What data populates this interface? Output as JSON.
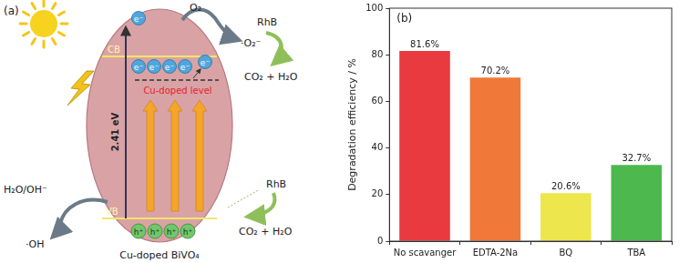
{
  "chart_data": {
    "type": "bar",
    "title": "(b)",
    "y_label": "Degradation efficiency / %",
    "categories": [
      "No scavanger",
      "EDTA-2Na",
      "BQ",
      "TBA"
    ],
    "values": [
      81.6,
      70.2,
      20.6,
      32.7
    ],
    "value_labels": [
      "81.6%",
      "70.2%",
      "20.6%",
      "32.7%"
    ],
    "colors": [
      "#e83a3f",
      "#f07838",
      "#ede64c",
      "#4db84e"
    ],
    "ylim": [
      0,
      100
    ],
    "yticks": [
      0,
      20,
      40,
      60,
      80,
      100
    ],
    "grid": false,
    "data_labels": true
  },
  "diagram": {
    "panel_label": "(a)",
    "band_gap": "2.41 eV",
    "conduction_band": "CB",
    "valence_band": "VB",
    "dopant_level": "Cu-doped level",
    "electrons": [
      "e⁻",
      "e⁻",
      "e⁻",
      "e⁻",
      "e⁻",
      "e⁻"
    ],
    "holes": [
      "h⁺",
      "h⁺",
      "h⁺",
      "h⁺"
    ],
    "oxygen": "O₂",
    "superoxide": "·O₂⁻",
    "pollutant_top": "RhB",
    "products_top": "CO₂ + H₂O",
    "pollutant_bottom": "RhB",
    "products_bottom": "CO₂ + H₂O",
    "water": "H₂O/OH⁻",
    "hydroxyl": "·OH",
    "caption": "Cu-doped BiVO₄"
  }
}
